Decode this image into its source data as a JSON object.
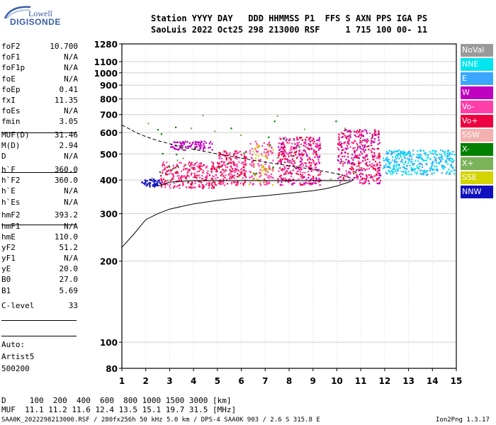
{
  "logo": {
    "line1": "Lowell",
    "line2": "DIGISONDE"
  },
  "header": {
    "row1": "Station YYYY DAY   DDD HHMMSS P1  FFS S AXN PPS IGA PS",
    "row2": "SaoLuis 2022 Oct25 298 213000 RSF     1 715 100 00- 11"
  },
  "params": [
    {
      "label": "foF2",
      "value": "10.700"
    },
    {
      "label": "foF1",
      "value": "N/A"
    },
    {
      "label": "foF1p",
      "value": "N/A"
    },
    {
      "label": "foE",
      "value": "N/A"
    },
    {
      "label": "foEp",
      "value": "0.41"
    },
    {
      "label": "fxI",
      "value": "11.35"
    },
    {
      "label": "foEs",
      "value": "N/A"
    },
    {
      "label": "fmin",
      "value": "3.05"
    },
    {
      "label": "MUF(D)",
      "value": "31.46"
    },
    {
      "label": "M(D)",
      "value": "2.94"
    },
    {
      "label": "D",
      "value": "N/A"
    },
    {
      "label": "h`F",
      "value": "360.0"
    },
    {
      "label": "h`F2",
      "value": "360.0"
    },
    {
      "label": "h`E",
      "value": "N/A"
    },
    {
      "label": "h`Es",
      "value": "N/A"
    },
    {
      "label": "hmF2",
      "value": "393.2"
    },
    {
      "label": "hmF1",
      "value": "N/A"
    },
    {
      "label": "hmE",
      "value": "110.0"
    },
    {
      "label": "yF2",
      "value": "51.2"
    },
    {
      "label": "yF1",
      "value": "N/A"
    },
    {
      "label": "yE",
      "value": "20.0"
    },
    {
      "label": "B0",
      "value": "27.0"
    },
    {
      "label": "B1",
      "value": "5.69"
    },
    {
      "label": "C-level",
      "value": "33"
    }
  ],
  "notes": {
    "auto": "Auto:",
    "artist": "Artist5",
    "version": "500200"
  },
  "legend": [
    {
      "label": "NoVal",
      "color": "#9a9a9a"
    },
    {
      "label": "NNE",
      "color": "#00e5ee"
    },
    {
      "label": "E",
      "color": "#3aa6ff"
    },
    {
      "label": "W",
      "color": "#c000c0"
    },
    {
      "label": "Vo-",
      "color": "#ff3fa8"
    },
    {
      "label": "Vo+",
      "color": "#ee0040"
    },
    {
      "label": "SSW",
      "color": "#f4b0b0"
    },
    {
      "label": "X-",
      "color": "#008000"
    },
    {
      "label": "X+",
      "color": "#7ab35a"
    },
    {
      "label": "SSE",
      "color": "#d4d400"
    },
    {
      "label": "NNW",
      "color": "#1010c0"
    }
  ],
  "footer": {
    "dist_row": "D     100  200  400  600  800 1000 1500 3000 [km]",
    "muf_row": "MUF  11.1 11.2 11.6 12.4 13.5 15.1 19.7 31.5 [MHz]",
    "file_row": "SAA0K_2022298213000.RSF / 280fx256h 50 kHz 5.0 km / DPS-4 SAA0K 903 / 2.6 S 315.8 E",
    "version": "Ion2Png 1.3.17"
  },
  "chart_data": {
    "type": "scatter",
    "x_ticks": [
      "1",
      "2",
      "3",
      "4",
      "5",
      "6",
      "7",
      "8",
      "9",
      "10",
      "11",
      "12",
      "13",
      "14",
      "15"
    ],
    "y_ticks": [
      "80",
      "100",
      "200",
      "300",
      "400",
      "500",
      "600",
      "700",
      "800",
      "900",
      "1000",
      "1100",
      "1280"
    ],
    "xlim": [
      1,
      15
    ],
    "ylim": [
      80,
      1280
    ],
    "y_scale": "log",
    "traces": [
      {
        "name": "trace-lower",
        "style": "solid",
        "x": [
          1.0,
          1.5,
          2.0,
          2.5,
          3.0,
          4.0,
          5.0,
          6.0,
          7.0,
          8.0,
          9.0,
          9.5,
          10.0,
          10.5,
          10.7
        ],
        "y": [
          225,
          252,
          285,
          300,
          312,
          326,
          336,
          344,
          350,
          357,
          365,
          371,
          380,
          393,
          400
        ]
      },
      {
        "name": "trace-upper",
        "style": "dashed",
        "x": [
          1.0,
          1.3,
          1.6,
          2.0,
          2.5,
          3.0,
          3.5,
          4.0,
          5.0,
          6.0,
          7.0,
          8.0,
          9.0,
          10.0,
          10.5,
          10.7
        ],
        "y": [
          640,
          620,
          600,
          580,
          560,
          545,
          530,
          520,
          500,
          482,
          466,
          452,
          438,
          422,
          410,
          400
        ]
      },
      {
        "name": "trace-profile",
        "style": "solid",
        "x": [
          2.5,
          3.0,
          4.0,
          5.0,
          6.0,
          7.0,
          8.0,
          9.0,
          10.0,
          10.5
        ],
        "y": [
          380,
          393,
          398,
          398,
          398,
          398,
          398,
          398,
          398,
          398
        ]
      }
    ],
    "echo_regions": [
      {
        "x": [
          1.8,
          2.6
        ],
        "y": [
          380,
          405
        ],
        "color": "NNW",
        "density": 50
      },
      {
        "x": [
          3.0,
          4.8
        ],
        "y": [
          520,
          560
        ],
        "color": "W",
        "density": 90
      },
      {
        "x": [
          2.6,
          5.0
        ],
        "y": [
          375,
          470
        ],
        "color": "Vo-",
        "density": 140
      },
      {
        "x": [
          2.6,
          5.0
        ],
        "y": [
          375,
          470
        ],
        "color": "Vo+",
        "density": 120
      },
      {
        "x": [
          5.0,
          6.2
        ],
        "y": [
          385,
          520
        ],
        "color": "Vo-",
        "density": 110
      },
      {
        "x": [
          5.0,
          6.2
        ],
        "y": [
          385,
          520
        ],
        "color": "Vo+",
        "density": 90
      },
      {
        "x": [
          6.3,
          7.3
        ],
        "y": [
          385,
          560
        ],
        "color": "Vo-",
        "density": 120
      },
      {
        "x": [
          6.3,
          7.3
        ],
        "y": [
          385,
          560
        ],
        "color": "SSE",
        "density": 40
      },
      {
        "x": [
          7.5,
          9.3
        ],
        "y": [
          385,
          580
        ],
        "color": "Vo-",
        "density": 180
      },
      {
        "x": [
          7.5,
          9.3
        ],
        "y": [
          385,
          580
        ],
        "color": "Vo+",
        "density": 150
      },
      {
        "x": [
          7.5,
          9.3
        ],
        "y": [
          385,
          580
        ],
        "color": "W",
        "density": 80
      },
      {
        "x": [
          10.0,
          11.8
        ],
        "y": [
          390,
          620
        ],
        "color": "Vo+",
        "density": 180
      },
      {
        "x": [
          10.0,
          11.8
        ],
        "y": [
          390,
          620
        ],
        "color": "W",
        "density": 110
      },
      {
        "x": [
          10.0,
          11.8
        ],
        "y": [
          390,
          620
        ],
        "color": "Vo-",
        "density": 90
      },
      {
        "x": [
          11.9,
          14.9
        ],
        "y": [
          420,
          520
        ],
        "color": "NNE",
        "density": 220
      },
      {
        "x": [
          11.9,
          14.9
        ],
        "y": [
          420,
          520
        ],
        "color": "E",
        "density": 140
      },
      {
        "x": [
          2.0,
          11.0
        ],
        "y": [
          400,
          700
        ],
        "color": "X-",
        "density": 25
      },
      {
        "x": [
          2.0,
          11.0
        ],
        "y": [
          400,
          700
        ],
        "color": "X+",
        "density": 25
      }
    ]
  }
}
